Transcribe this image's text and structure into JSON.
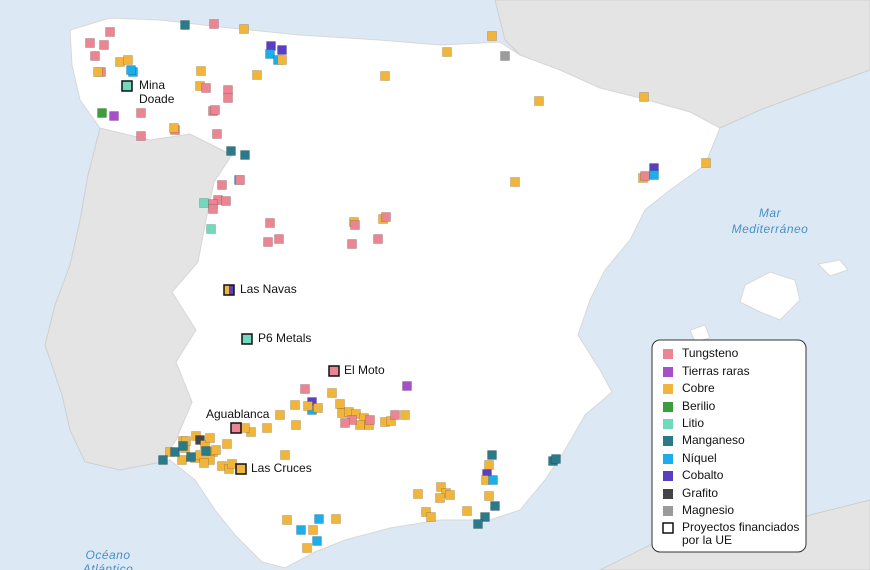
{
  "sea_labels": [
    [
      "Mar",
      "Mediterráneo"
    ],
    [
      "Océano",
      "Atlántico"
    ]
  ],
  "projects": [
    {
      "label": "Mina\nDoade"
    },
    {
      "label": "Las Navas"
    },
    {
      "label": "P6 Metals"
    },
    {
      "label": "El Moto"
    },
    {
      "label": "Aguablanca"
    },
    {
      "label": "Las Cruces"
    }
  ],
  "legend": {
    "items": [
      {
        "label": "Tungsteno",
        "color": "#ec8592"
      },
      {
        "label": "Tierras raras",
        "color": "#a54fc8"
      },
      {
        "label": "Cobre",
        "color": "#f1b53c"
      },
      {
        "label": "Berilio",
        "color": "#3a9e3a"
      },
      {
        "label": "Litio",
        "color": "#72d9bd"
      },
      {
        "label": "Manganeso",
        "color": "#2b7a89"
      },
      {
        "label": "Níquel",
        "color": "#1caeea"
      },
      {
        "label": "Cobalto",
        "color": "#5a3fc2"
      },
      {
        "label": "Grafito",
        "color": "#444444"
      },
      {
        "label": "Magnesio",
        "color": "#9b9b9b"
      },
      {
        "label": "Proyectos financiados\npor la UE",
        "color": "#ffffff"
      }
    ]
  }
}
